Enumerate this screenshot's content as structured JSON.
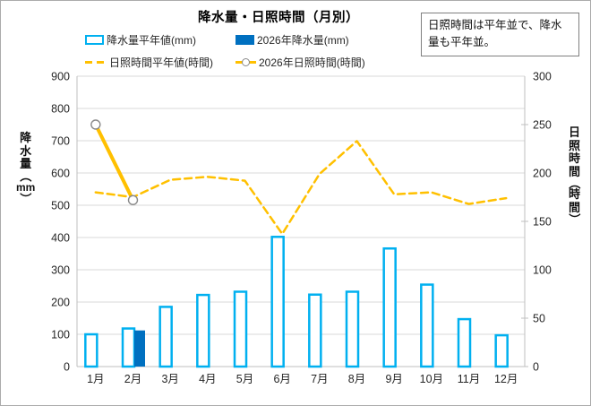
{
  "title": "降水量・日照時間（月別）",
  "note": "日照時間は平年並で、降水量も平年並。",
  "legend": {
    "precip_normal": "降水量平年値(mm)",
    "precip_2026": "2026年降水量(mm)",
    "sun_normal": "日照時間平年値(時間)",
    "sun_2026": "2026年日照時間(時間)"
  },
  "colors": {
    "precip_normal": "#00b0f0",
    "precip_2026": "#0070c0",
    "sunshine": "#ffc000",
    "gridline": "#d9d9d9",
    "axis_line": "#bfbfbf",
    "tick_text": "#262626",
    "marker_stroke": "#8a8a8a"
  },
  "chart_data": {
    "type": "combo",
    "title": "降水量・日照時間（月別）",
    "categories": [
      "1月",
      "2月",
      "3月",
      "4月",
      "5月",
      "6月",
      "7月",
      "8月",
      "9月",
      "10月",
      "11月",
      "12月"
    ],
    "series": [
      {
        "name": "降水量平年値(mm)",
        "type": "bar",
        "style": "outline",
        "axis": "left",
        "color": "#00b0f0",
        "values": [
          100,
          118,
          185,
          222,
          232,
          402,
          223,
          232,
          366,
          254,
          147,
          97
        ]
      },
      {
        "name": "2026年降水量(mm)",
        "type": "bar",
        "style": "solid",
        "axis": "left",
        "color": "#0070c0",
        "values": [
          null,
          112,
          null,
          null,
          null,
          null,
          null,
          null,
          null,
          null,
          null,
          null
        ]
      },
      {
        "name": "日照時間平年値(時間)",
        "type": "line",
        "style": "dashed",
        "axis": "right",
        "color": "#ffc000",
        "values": [
          180,
          175,
          193,
          196,
          192,
          137,
          199,
          233,
          178,
          180,
          168,
          174
        ]
      },
      {
        "name": "2026年日照時間(時間)",
        "type": "line",
        "style": "solid-marker",
        "axis": "right",
        "color": "#ffc000",
        "values": [
          250,
          172,
          null,
          null,
          null,
          null,
          null,
          null,
          null,
          null,
          null,
          null
        ]
      }
    ],
    "left_axis": {
      "title": "降水量（mm）",
      "min": 0,
      "max": 900,
      "step": 100
    },
    "right_axis": {
      "title": "日照時間（時間）",
      "min": 0,
      "max": 300,
      "step": 50
    },
    "grid": true,
    "legend_position": "top"
  }
}
